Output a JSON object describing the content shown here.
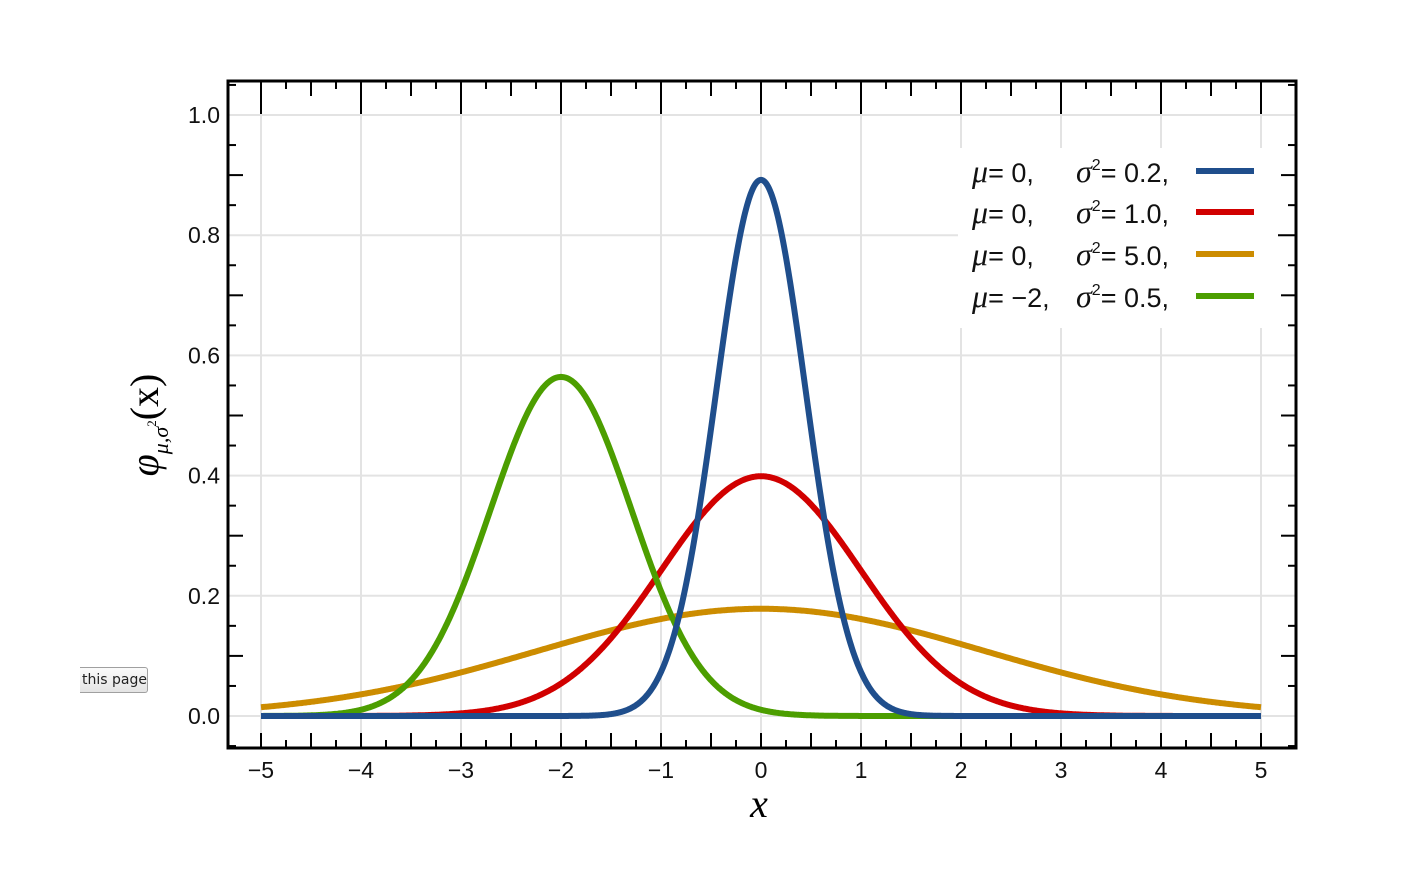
{
  "chart_data": {
    "type": "line",
    "title": "",
    "xlabel": "x",
    "ylabel": "φ_{μ,σ²}(x)",
    "xlim": [
      -5,
      5
    ],
    "ylim": [
      0,
      1.0
    ],
    "x_ticks": [
      "−5",
      "−4",
      "−3",
      "−2",
      "−1",
      "0",
      "1",
      "2",
      "3",
      "4",
      "5"
    ],
    "y_ticks": [
      "0.0",
      "0.2",
      "0.4",
      "0.6",
      "0.8",
      "1.0"
    ],
    "grid": true,
    "legend_position": "upper right",
    "series": [
      {
        "name": "μ=0, σ²=0.2",
        "mu": 0,
        "variance": 0.2,
        "color": "#1f4e8c",
        "peak": 0.89
      },
      {
        "name": "μ=0, σ²=1.0",
        "mu": 0,
        "variance": 1.0,
        "color": "#d10000",
        "peak": 0.4
      },
      {
        "name": "μ=0, σ²=5.0",
        "mu": 0,
        "variance": 5.0,
        "color": "#cc8c00",
        "peak": 0.18
      },
      {
        "name": "μ=−2, σ²=0.5",
        "mu": -2,
        "variance": 0.5,
        "color": "#4c9e00",
        "peak": 0.56
      }
    ]
  },
  "legend": [
    {
      "mu": "μ",
      "mu_val": "= 0,",
      "sigma": "σ",
      "sup": "2",
      "var_val": "= 0.2,"
    },
    {
      "mu": "μ",
      "mu_val": "= 0,",
      "sigma": "σ",
      "sup": "2",
      "var_val": "= 1.0,"
    },
    {
      "mu": "μ",
      "mu_val": "= 0,",
      "sigma": "σ",
      "sup": "2",
      "var_val": "= 5.0,"
    },
    {
      "mu": "μ",
      "mu_val": "= −2,",
      "sigma": "σ",
      "sup": "2",
      "var_val": "= 0.5,"
    }
  ],
  "axis_labels": {
    "x": "x",
    "y_phi": "φ",
    "y_sub": "μ,σ",
    "y_sup": "2",
    "y_arg": "(x)"
  },
  "page_button": {
    "label": "this page"
  }
}
